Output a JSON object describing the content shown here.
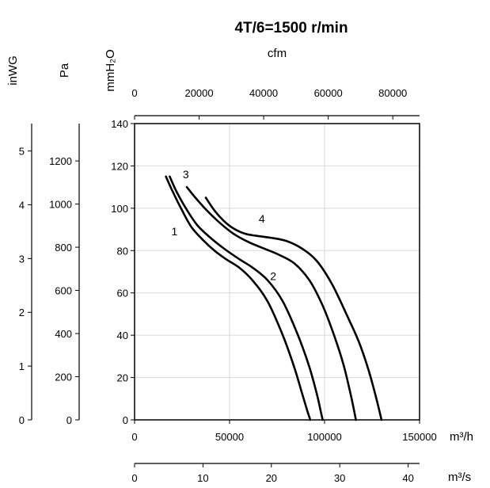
{
  "chart_data": {
    "type": "line",
    "title": "4T/6=1500 r/min",
    "x": {
      "label": "m³/h",
      "range": [
        0,
        150000
      ],
      "ticks": [
        0,
        50000,
        100000,
        150000
      ],
      "tick_labels": [
        "0",
        "50000",
        "100000",
        "150000"
      ]
    },
    "x_secondary_bottom": {
      "label": "m³/s",
      "range": [
        0,
        41.667
      ],
      "ticks": [
        0,
        10,
        20,
        30,
        40
      ],
      "tick_labels": [
        "0",
        "10",
        "20",
        "30",
        "40"
      ]
    },
    "x_secondary_top": {
      "label": "cfm",
      "range": [
        0,
        88286
      ],
      "ticks": [
        0,
        20000,
        40000,
        60000,
        80000
      ],
      "tick_labels": [
        "0",
        "20000",
        "40000",
        "60000",
        "80000"
      ]
    },
    "y": {
      "label": "mmH₂O",
      "range": [
        0,
        140
      ],
      "ticks": [
        0,
        20,
        40,
        60,
        80,
        100,
        120,
        140
      ],
      "tick_labels": [
        "0",
        "20",
        "40",
        "60",
        "80",
        "100",
        "120",
        "140"
      ]
    },
    "y_secondary_pa": {
      "label": "Pa",
      "range": [
        0,
        1373
      ],
      "ticks": [
        0,
        200,
        400,
        600,
        800,
        1000,
        1200
      ],
      "tick_labels": [
        "0",
        "200",
        "400",
        "600",
        "800",
        "1000",
        "1200"
      ]
    },
    "y_secondary_inwg": {
      "label": "inWG",
      "range": [
        0,
        5.51
      ],
      "ticks": [
        0,
        1,
        2,
        3,
        4,
        5
      ],
      "tick_labels": [
        "0",
        "1",
        "2",
        "3",
        "4",
        "5"
      ]
    },
    "grid": true,
    "series": [
      {
        "name": "1",
        "x": [
          16500,
          20000,
          25000,
          30000,
          36000,
          42000,
          48000,
          55000,
          62000,
          70000,
          78000,
          84000,
          88000,
          91000,
          92500
        ],
        "y": [
          115,
          108,
          99,
          91,
          85,
          80,
          76,
          72,
          66,
          56,
          40,
          25,
          13,
          4,
          0
        ]
      },
      {
        "name": "2",
        "x": [
          18500,
          22000,
          27000,
          33000,
          40000,
          47000,
          55000,
          62000,
          70000,
          78000,
          86000,
          92000,
          96000,
          98000,
          99000
        ],
        "y": [
          115,
          108,
          100,
          92,
          86,
          81,
          76,
          72,
          66,
          56,
          40,
          25,
          12,
          4,
          0
        ]
      },
      {
        "name": "3",
        "x": [
          27500,
          32000,
          38000,
          45000,
          52000,
          60000,
          68000,
          76000,
          84000,
          92000,
          99000,
          105000,
          110000,
          114000,
          116500
        ],
        "y": [
          110,
          105,
          99,
          93,
          88,
          84,
          81,
          78,
          74,
          66,
          54,
          40,
          26,
          11,
          0
        ]
      },
      {
        "name": "4",
        "x": [
          37500,
          42000,
          47000,
          52000,
          58000,
          64000,
          72000,
          80000,
          88000,
          96000,
          104000,
          112000,
          118000,
          123000,
          127000,
          130000
        ],
        "y": [
          105,
          99,
          94,
          90.5,
          88,
          87,
          86,
          84.5,
          81,
          75,
          64,
          49,
          37,
          24,
          11,
          0
        ]
      }
    ],
    "curve_labels": [
      {
        "text": "1",
        "x": 21000,
        "y": 89
      },
      {
        "text": "2",
        "x": 73000,
        "y": 68
      },
      {
        "text": "3",
        "x": 27000,
        "y": 116
      },
      {
        "text": "4",
        "x": 67000,
        "y": 95
      }
    ]
  }
}
